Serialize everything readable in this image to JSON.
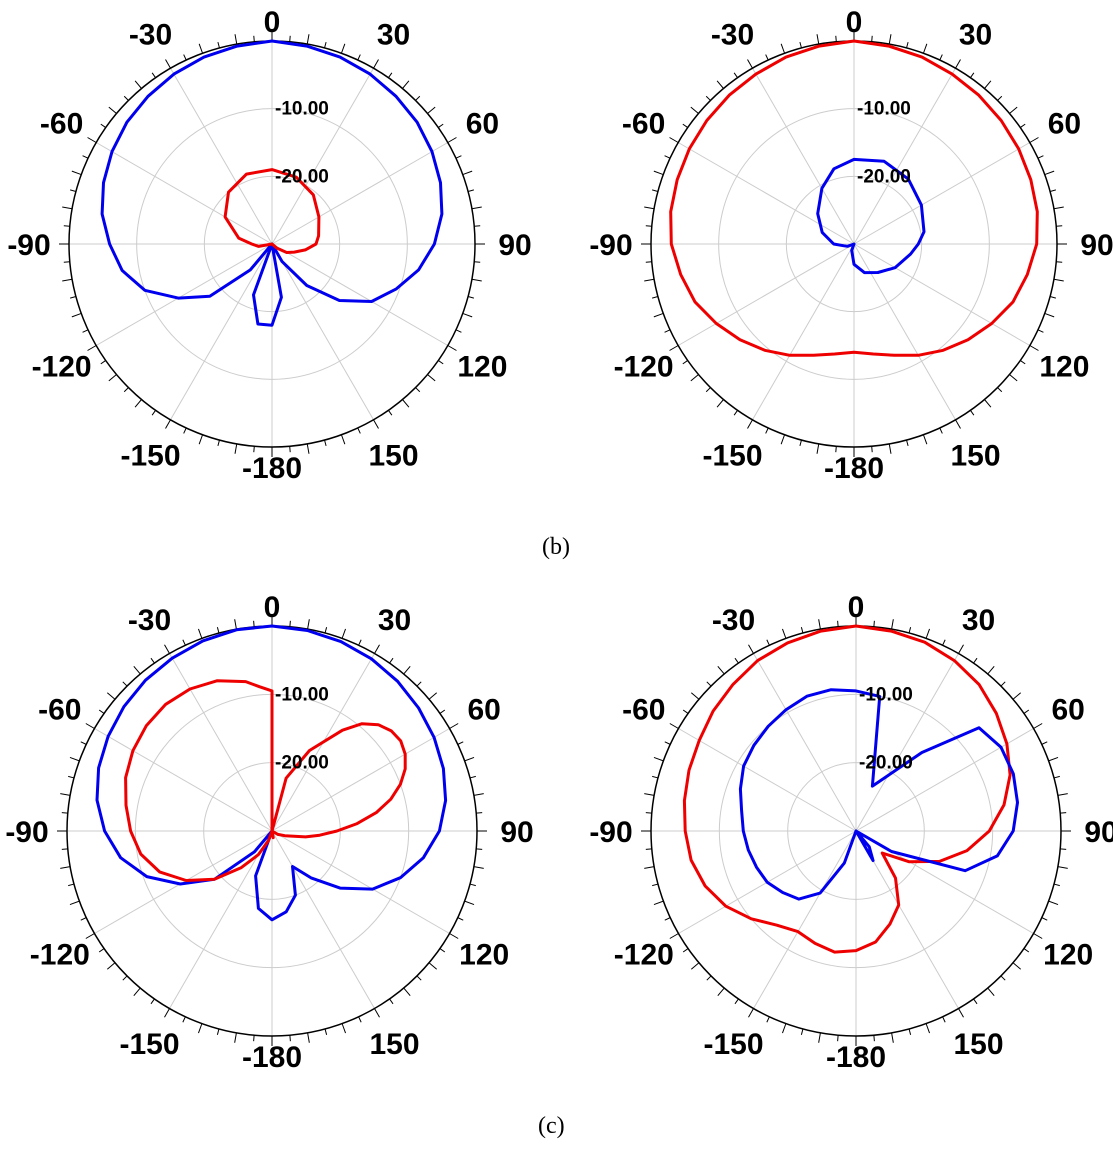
{
  "captions": {
    "b": "(b)",
    "c": "(c)"
  },
  "colors": {
    "blue": "#0000ee",
    "red": "#ee0000",
    "grid": "#cccccc",
    "axis": "#000000"
  },
  "chart_data": [
    {
      "type": "polar",
      "panel": "b-left",
      "angle_labels": [
        "0",
        "30",
        "60",
        "90",
        "120",
        "150",
        "-180",
        "-150",
        "-120",
        "-90",
        "-60",
        "-30"
      ],
      "ring_labels": [
        "-10.00",
        "-20.00"
      ],
      "radial_range_db": [
        -30,
        0
      ],
      "series": [
        {
          "color": "blue",
          "angles": [
            0,
            10,
            20,
            30,
            40,
            50,
            60,
            70,
            80,
            90,
            100,
            110,
            120,
            130,
            140,
            150,
            160,
            170,
            180,
            190,
            200,
            210,
            220,
            230,
            240,
            250,
            260,
            270,
            280,
            290,
            300,
            310,
            320,
            330,
            340,
            350
          ],
          "values": [
            0,
            -0.3,
            -0.6,
            -1,
            -1.5,
            -2,
            -2.7,
            -3.5,
            -4.5,
            -6,
            -8,
            -10.5,
            -13,
            -17,
            -22,
            -27,
            -30,
            -22,
            -18,
            -18,
            -22,
            -30,
            -25,
            -18,
            -14,
            -10,
            -7.5,
            -6,
            -4.5,
            -3.5,
            -2.7,
            -2,
            -1.5,
            -1,
            -0.6,
            -0.3
          ]
        },
        {
          "color": "red",
          "angles": [
            0,
            20,
            40,
            60,
            80,
            90,
            100,
            110,
            120,
            130,
            140,
            150,
            160,
            180,
            200,
            240,
            260,
            270,
            280,
            300,
            320,
            340
          ],
          "values": [
            -19,
            -19.5,
            -20.5,
            -22,
            -23,
            -23.5,
            -25,
            -26.5,
            -27.5,
            -29,
            -30,
            -30,
            -30,
            -30,
            -30,
            -30,
            -28,
            -27,
            -25,
            -22,
            -20,
            -19
          ]
        }
      ]
    },
    {
      "type": "polar",
      "panel": "b-right",
      "angle_labels": [
        "0",
        "30",
        "60",
        "90",
        "120",
        "150",
        "-180",
        "-150",
        "-120",
        "-90",
        "-60",
        "-30"
      ],
      "ring_labels": [
        "-10.00",
        "-20.00"
      ],
      "radial_range_db": [
        -30,
        0
      ],
      "series": [
        {
          "color": "red",
          "angles": [
            0,
            10,
            20,
            30,
            40,
            50,
            60,
            70,
            80,
            90,
            100,
            110,
            120,
            130,
            140,
            150,
            160,
            170,
            180,
            190,
            200,
            210,
            220,
            230,
            240,
            250,
            260,
            270,
            280,
            290,
            300,
            310,
            320,
            330,
            340,
            350
          ],
          "values": [
            0,
            -0.3,
            -0.6,
            -1,
            -1.3,
            -1.6,
            -1.9,
            -2.2,
            -2.5,
            -3,
            -4,
            -5,
            -6.5,
            -8,
            -9.5,
            -11,
            -12.5,
            -13.5,
            -14,
            -13.5,
            -12.5,
            -11,
            -9.5,
            -8,
            -6.5,
            -5,
            -4,
            -3,
            -2.5,
            -2.2,
            -1.9,
            -1.6,
            -1.3,
            -1,
            -0.6,
            -0.3
          ]
        },
        {
          "color": "blue",
          "angles": [
            0,
            20,
            40,
            60,
            80,
            90,
            100,
            120,
            140,
            160,
            180,
            200,
            230,
            250,
            260,
            270,
            290,
            310,
            330,
            345
          ],
          "values": [
            -17.5,
            -17,
            -17.5,
            -18.5,
            -19.5,
            -20.5,
            -21.5,
            -23,
            -24.5,
            -25.5,
            -27,
            -29,
            -30,
            -29,
            -28.5,
            -27,
            -25,
            -23,
            -20.5,
            -18.5
          ]
        }
      ]
    },
    {
      "type": "polar",
      "panel": "c-left",
      "angle_labels": [
        "0",
        "30",
        "60",
        "90",
        "120",
        "150",
        "-180",
        "-150",
        "-120",
        "-90",
        "-60",
        "-30"
      ],
      "ring_labels": [
        "-10.00",
        "-20.00"
      ],
      "radial_range_db": [
        -30,
        0
      ],
      "series": [
        {
          "color": "blue",
          "angles": [
            0,
            10,
            20,
            30,
            40,
            50,
            60,
            70,
            80,
            90,
            100,
            110,
            120,
            130,
            140,
            150,
            160,
            170,
            180,
            190,
            200,
            210,
            220,
            230,
            240,
            250,
            260,
            270,
            280,
            290,
            300,
            310,
            320,
            330,
            340,
            350
          ],
          "values": [
            0,
            -0.2,
            -0.5,
            -0.9,
            -1.4,
            -2,
            -2.6,
            -3.3,
            -4.2,
            -5.5,
            -7.5,
            -10,
            -13,
            -17,
            -21,
            -24,
            -20,
            -18,
            -17,
            -18.5,
            -23,
            -30,
            -26,
            -19,
            -14.5,
            -10.5,
            -7.5,
            -5.5,
            -4,
            -3,
            -2.3,
            -1.7,
            -1.2,
            -0.8,
            -0.4,
            -0.1
          ]
        },
        {
          "color": "red",
          "angles": [
            0,
            5,
            15,
            25,
            35,
            40,
            45,
            50,
            55,
            60,
            65,
            70,
            75,
            80,
            85,
            90,
            95,
            100,
            110,
            120,
            140,
            160,
            170,
            180,
            190,
            200,
            210,
            220,
            230,
            240,
            250,
            260,
            270,
            280,
            290,
            300,
            310,
            320,
            330,
            340,
            350,
            355
          ],
          "values": [
            -9.5,
            -30,
            -22,
            -17,
            -12,
            -9.5,
            -8,
            -7.2,
            -7,
            -7.5,
            -8.5,
            -10,
            -12,
            -14.5,
            -17.5,
            -20.5,
            -23,
            -25,
            -28,
            -29,
            -30,
            -30,
            -29,
            -30,
            -30,
            -28.5,
            -26,
            -23,
            -19,
            -15.5,
            -12.5,
            -10.5,
            -9.3,
            -8.3,
            -7.2,
            -6.5,
            -6,
            -5.8,
            -6,
            -6.6,
            -7.8,
            -8.8
          ]
        }
      ]
    },
    {
      "type": "polar",
      "panel": "c-right",
      "angle_labels": [
        "0",
        "30",
        "60",
        "90",
        "120",
        "150",
        "-180",
        "-150",
        "-120",
        "-90",
        "-60",
        "-30"
      ],
      "ring_labels": [
        "-10.00",
        "-20.00"
      ],
      "radial_range_db": [
        -30,
        0
      ],
      "series": [
        {
          "color": "red",
          "angles": [
            0,
            10,
            20,
            30,
            40,
            50,
            60,
            70,
            80,
            90,
            100,
            110,
            120,
            130,
            140,
            150,
            160,
            170,
            180,
            190,
            200,
            210,
            220,
            230,
            240,
            250,
            260,
            270,
            280,
            290,
            300,
            310,
            320,
            330,
            340,
            350
          ],
          "values": [
            0,
            -0.3,
            -0.6,
            -1.2,
            -2,
            -3.2,
            -4.5,
            -6,
            -8,
            -10.5,
            -13.5,
            -17,
            -21,
            -25,
            -21,
            -17.5,
            -15.5,
            -13.5,
            -12.5,
            -12,
            -12.5,
            -13,
            -12,
            -10,
            -8,
            -6.5,
            -5.5,
            -5,
            -4.5,
            -4,
            -3.5,
            -2.7,
            -2,
            -1.2,
            -0.7,
            -0.3
          ]
        },
        {
          "color": "blue",
          "angles": [
            0,
            10,
            20,
            40,
            50,
            60,
            70,
            80,
            90,
            100,
            110,
            120,
            130,
            140,
            150,
            160,
            170,
            180,
            190,
            200,
            210,
            220,
            230,
            240,
            250,
            260,
            270,
            280,
            290,
            300,
            310,
            320,
            330,
            340,
            350
          ],
          "values": [
            -9.5,
            -10,
            -23,
            -15,
            -6.5,
            -5.5,
            -5.5,
            -6,
            -7,
            -9,
            -13,
            -24,
            -30,
            -27,
            -25,
            -30,
            -30,
            -30,
            -30,
            -25,
            -19.5,
            -17,
            -16,
            -15,
            -14.5,
            -14,
            -13.5,
            -13,
            -12,
            -11,
            -10.5,
            -10,
            -9.5,
            -9,
            -9
          ]
        }
      ]
    }
  ]
}
